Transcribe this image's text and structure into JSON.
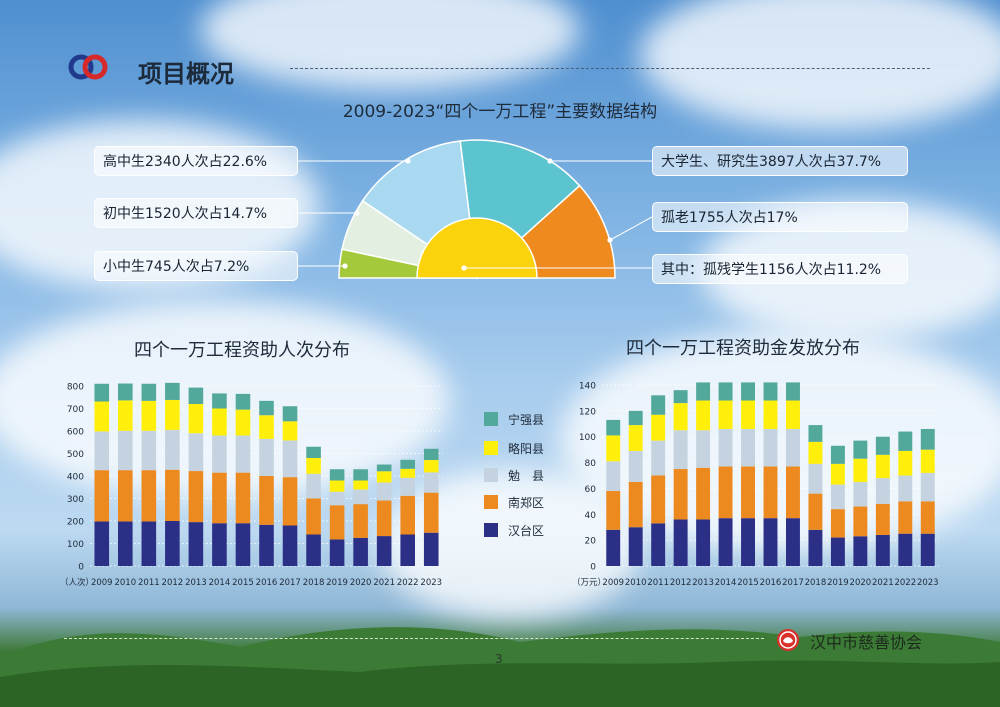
{
  "header": {
    "title": "项目概况"
  },
  "colors": {
    "purple": "#2b2f86",
    "orange": "#ec8a1f",
    "grey": "#c4d3df",
    "yellow": "#ffef0a",
    "teal": "#52a89a",
    "pie_blue": "#a8d9f0",
    "pie_cyan": "#5cc4cf",
    "pie_orange": "#ef8a1f",
    "pie_white": "#e3efe1",
    "pie_green": "#a4c93a",
    "pie_yellow": "#fbd30d"
  },
  "pie": {
    "title": "2009-2023“四个一万工程”主要数据结构",
    "labels": {
      "high": "高中生2340人次占22.6%",
      "junior": "初中生1520人次占14.7%",
      "primary": "小中生745人次占7.2%",
      "college": "大学生、研究生3897人次占37.7%",
      "elder": "孤老1755人次占17%",
      "orphan": "其中：孤残学生1156人次占11.2%"
    }
  },
  "legend": [
    {
      "label": "宁强县",
      "color": "#52a89a"
    },
    {
      "label": "略阳县",
      "color": "#ffef0a"
    },
    {
      "label": "勉　县",
      "color": "#c4d3df"
    },
    {
      "label": "南郑区",
      "color": "#ec8a1f"
    },
    {
      "label": "汉台区",
      "color": "#2b2f86"
    }
  ],
  "footer": {
    "page": "3",
    "org": "汉中市慈善协会"
  },
  "chart_data": [
    {
      "type": "bar",
      "stacked": true,
      "title": "四个一万工程资助人次分布",
      "unit": "（人次）",
      "categories": [
        "2009",
        "2010",
        "2011",
        "2012",
        "2013",
        "2014",
        "2015",
        "2016",
        "2017",
        "2018",
        "2019",
        "2020",
        "2021",
        "2022",
        "2023"
      ],
      "ylim": [
        0,
        800
      ],
      "yticks": [
        0,
        100,
        200,
        300,
        400,
        500,
        600,
        700,
        800
      ],
      "grid": true,
      "series": [
        {
          "name": "汉台区",
          "values": [
            198,
            198,
            198,
            200,
            195,
            190,
            190,
            183,
            180,
            140,
            118,
            125,
            133,
            140,
            148
          ]
        },
        {
          "name": "南郑区",
          "values": [
            228,
            228,
            228,
            228,
            227,
            225,
            225,
            217,
            215,
            160,
            152,
            150,
            158,
            172,
            178
          ]
        },
        {
          "name": "勉　县",
          "values": [
            172,
            175,
            175,
            177,
            168,
            165,
            165,
            165,
            163,
            110,
            60,
            65,
            80,
            80,
            90
          ]
        },
        {
          "name": "略阳县",
          "values": [
            133,
            135,
            133,
            133,
            130,
            120,
            115,
            105,
            85,
            70,
            50,
            40,
            50,
            40,
            55
          ]
        },
        {
          "name": "宁强县",
          "values": [
            79,
            75,
            76,
            76,
            73,
            67,
            70,
            64,
            67,
            50,
            50,
            50,
            30,
            40,
            50
          ]
        }
      ]
    },
    {
      "type": "bar",
      "stacked": true,
      "title": "四个一万工程资助金发放分布",
      "unit": "（万元）",
      "categories": [
        "2009",
        "2010",
        "2011",
        "2012",
        "2013",
        "2014",
        "2015",
        "2016",
        "2017",
        "2018",
        "2019",
        "2020",
        "2021",
        "2022",
        "2023"
      ],
      "ylim": [
        0,
        140
      ],
      "yticks": [
        0,
        20,
        40,
        60,
        80,
        100,
        120,
        140
      ],
      "grid": true,
      "series": [
        {
          "name": "汉台区",
          "values": [
            28,
            30,
            33,
            36,
            36,
            37,
            37,
            37,
            37,
            28,
            22,
            23,
            24,
            25,
            25
          ]
        },
        {
          "name": "南郑区",
          "values": [
            30,
            35,
            37,
            39,
            40,
            40,
            40,
            40,
            40,
            28,
            22,
            23,
            24,
            25,
            25
          ]
        },
        {
          "name": "勉　县",
          "values": [
            23,
            24,
            27,
            30,
            29,
            29,
            29,
            29,
            29,
            23,
            19,
            19,
            20,
            20,
            22
          ]
        },
        {
          "name": "略阳县",
          "values": [
            20,
            20,
            20,
            21,
            23,
            22,
            22,
            22,
            22,
            17,
            16,
            18,
            18,
            19,
            18
          ]
        },
        {
          "name": "宁强县",
          "values": [
            12,
            11,
            15,
            10,
            14,
            14,
            14,
            14,
            14,
            13,
            14,
            14,
            14,
            15,
            16
          ]
        }
      ]
    },
    {
      "type": "pie",
      "title": "2009-2023“四个一万工程”主要数据结构",
      "slices": [
        {
          "label": "小中生",
          "count": 745,
          "percent": 7.2
        },
        {
          "label": "初中生",
          "count": 1520,
          "percent": 14.7
        },
        {
          "label": "高中生",
          "count": 2340,
          "percent": 22.6
        },
        {
          "label": "大学生、研究生",
          "count": 3897,
          "percent": 37.7
        },
        {
          "label": "孤老",
          "count": 1755,
          "percent": 17
        },
        {
          "label": "其中：孤残学生",
          "count": 1156,
          "percent": 11.2
        }
      ]
    }
  ]
}
